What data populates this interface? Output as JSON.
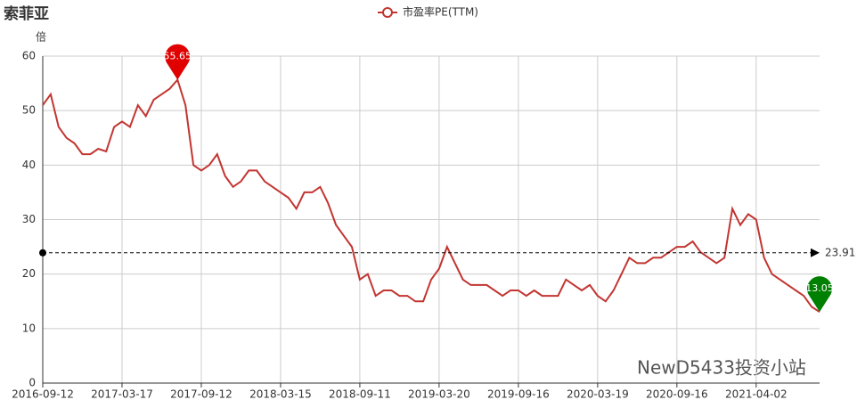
{
  "chart_data": {
    "type": "line",
    "title": "索菲亚",
    "y_axis_label": "倍",
    "watermark": "NewD5433投资小站",
    "categories": [
      "2016-09-12",
      null,
      null,
      null,
      null,
      null,
      null,
      null,
      null,
      null,
      "2017-03-17",
      null,
      null,
      null,
      null,
      null,
      null,
      null,
      null,
      null,
      "2017-09-12",
      null,
      null,
      null,
      null,
      null,
      null,
      null,
      null,
      null,
      "2018-03-15",
      null,
      null,
      null,
      null,
      null,
      null,
      null,
      null,
      null,
      "2018-09-11",
      null,
      null,
      null,
      null,
      null,
      null,
      null,
      null,
      null,
      "2019-03-20",
      null,
      null,
      null,
      null,
      null,
      null,
      null,
      null,
      null,
      "2019-09-16",
      null,
      null,
      null,
      null,
      null,
      null,
      null,
      null,
      null,
      "2020-03-19",
      null,
      null,
      null,
      null,
      null,
      null,
      null,
      null,
      null,
      "2020-09-16",
      null,
      null,
      null,
      null,
      null,
      null,
      null,
      null,
      null,
      "2021-04-02",
      null,
      null,
      null,
      null,
      null,
      null,
      null,
      null
    ],
    "series": [
      {
        "name": "市盈率PE(TTM)",
        "color": "#c23531",
        "values": [
          51,
          53,
          47,
          45,
          44,
          42,
          42,
          43,
          42.5,
          47,
          48,
          47,
          51,
          49,
          52,
          53,
          54,
          55.65,
          51,
          40,
          39,
          40,
          42,
          38,
          36,
          37,
          39,
          39,
          37,
          36,
          35,
          34,
          32,
          35,
          35,
          36,
          33,
          29,
          27,
          25,
          19,
          20,
          16,
          17,
          17,
          16,
          16,
          15,
          15,
          19,
          21,
          25,
          22,
          19,
          18,
          18,
          18,
          17,
          16,
          17,
          17,
          16,
          17,
          16,
          16,
          16,
          19,
          18,
          17,
          18,
          16,
          15,
          17,
          20,
          23,
          22,
          22,
          23,
          23,
          24,
          25,
          25,
          26,
          24,
          23,
          22,
          23,
          32,
          29,
          31,
          30,
          23,
          20,
          19,
          18,
          17,
          16,
          14,
          13.05
        ]
      }
    ],
    "average": 23.91,
    "max_color": "#e00000",
    "min_color": "#008000",
    "ylim": [
      0,
      60
    ],
    "yticks": [
      0,
      10,
      20,
      30,
      40,
      50,
      60
    ],
    "grid": true
  }
}
